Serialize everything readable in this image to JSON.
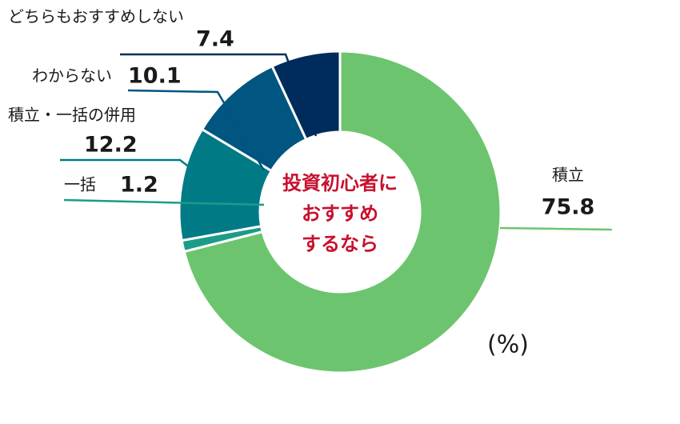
{
  "chart_data": {
    "type": "donut",
    "categories": [
      "積立",
      "一括",
      "積立・一括の併用",
      "わからない",
      "どちらもおすすめしない"
    ],
    "values": [
      75.8,
      1.2,
      12.2,
      10.1,
      7.4
    ],
    "colors": [
      "#6cc56e",
      "#1b9c86",
      "#007b86",
      "#005581",
      "#002c5c"
    ],
    "center_text": [
      "投資初心者に",
      "おすすめ",
      "するなら"
    ],
    "unit": "(%)"
  }
}
